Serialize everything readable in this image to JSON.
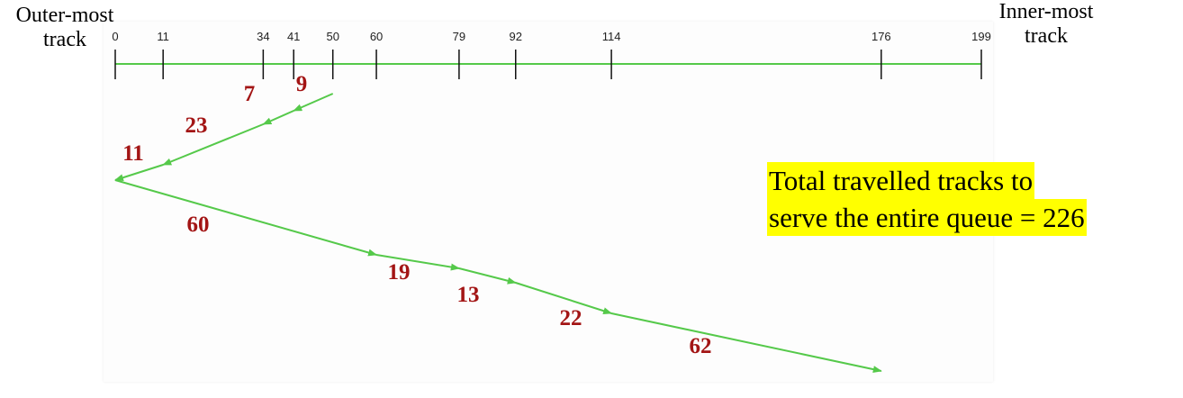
{
  "labels": {
    "outer_line1": "Outer-most",
    "outer_line2": "track",
    "inner_line1": "Inner-most",
    "inner_line2": "track"
  },
  "ticks": [
    "0",
    "11",
    "34",
    "41",
    "50",
    "60",
    "79",
    "92",
    "114",
    "176",
    "199"
  ],
  "sequence": [
    50,
    41,
    34,
    11,
    0,
    60,
    79,
    92,
    114,
    176
  ],
  "distances": [
    "9",
    "7",
    "23",
    "11",
    "60",
    "19",
    "13",
    "22",
    "62"
  ],
  "summary": {
    "line1": "Total travelled tracks to",
    "line2": "serve the entire queue = 226"
  },
  "colors": {
    "line": "#55c94a",
    "distance_text": "#a31515",
    "highlight": "#ffff00"
  }
}
